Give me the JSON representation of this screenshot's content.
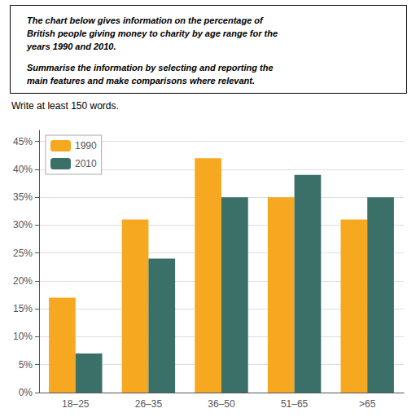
{
  "chart_data": {
    "type": "bar",
    "title": "The chart below gives information on the percentage of\nBritish people giving money to charity by age range for the\nyears 1990 and 2010.",
    "subtitle": "Summarise the information by selecting and reporting the\nmain features and make comparisons where relevant.",
    "annotations": [
      "Write at least 150 words."
    ],
    "categories": [
      "18–25",
      "26–35",
      "36–50",
      "51–65",
      ">65"
    ],
    "series": [
      {
        "name": "1990",
        "color": "#F5A820",
        "values": [
          17,
          31,
          42,
          35,
          31
        ]
      },
      {
        "name": "2010",
        "color": "#3A7068",
        "values": [
          7,
          24,
          35,
          39,
          35
        ]
      }
    ],
    "ylim": [
      0,
      47
    ],
    "yticks": [
      {
        "value": 0,
        "label": "0%"
      },
      {
        "value": 5,
        "label": "5%"
      },
      {
        "value": 10,
        "label": "10%"
      },
      {
        "value": 15,
        "label": "15%"
      },
      {
        "value": 20,
        "label": "20%"
      },
      {
        "value": 25,
        "label": "25%"
      },
      {
        "value": 30,
        "label": "30%"
      },
      {
        "value": 35,
        "label": "35%"
      },
      {
        "value": 40,
        "label": "40%"
      },
      {
        "value": 45,
        "label": "45%"
      }
    ],
    "grid": true,
    "legend": "upper left"
  }
}
